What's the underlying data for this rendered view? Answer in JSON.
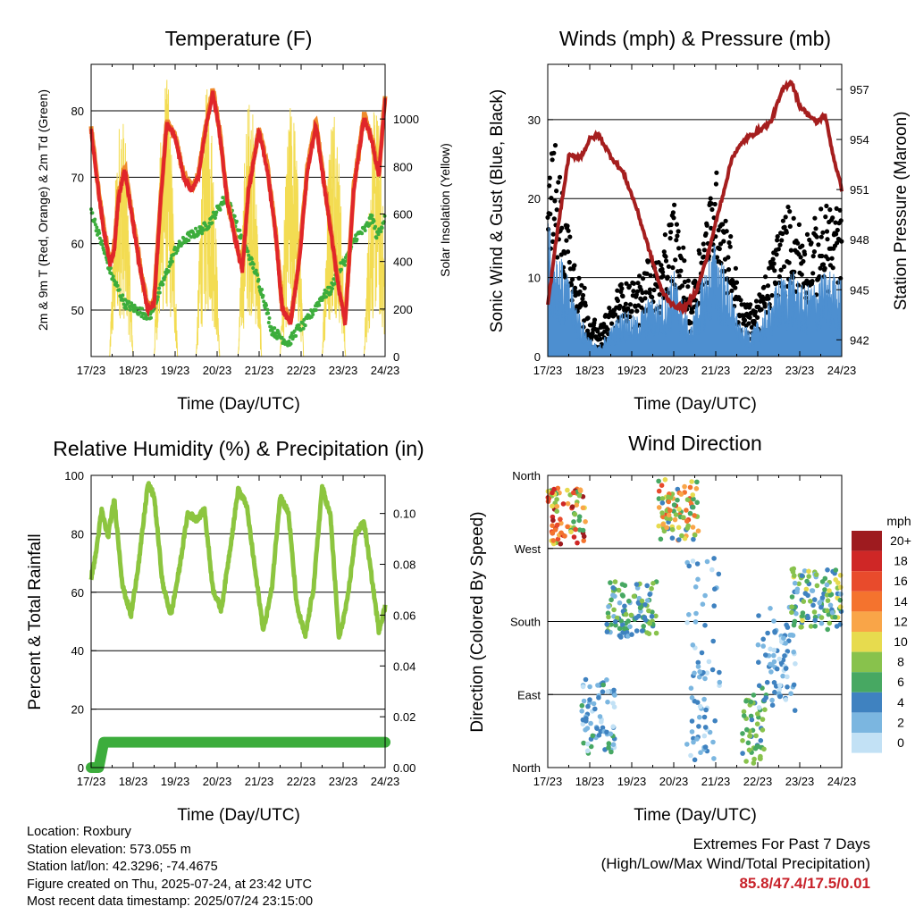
{
  "info": {
    "location": "Location: Roxbury",
    "elevation": "Station elevation: 573.055 m",
    "latlon": "Station lat/lon: 42.3296; -74.4675",
    "created": "Figure created on Thu, 2025-07-24, at 23:42 UTC",
    "latest": "Most recent data timestamp: 2025/07/24 23:15:00"
  },
  "extremes": {
    "title": "Extremes For Past 7 Days",
    "subtitle": "(High/Low/Max Wind/Total Precipitation)",
    "values": "85.8/47.4/17.5/0.01"
  },
  "colors": {
    "t2m": "#e0262a",
    "t9m": "#ef8a2c",
    "dewpoint": "#3cad3c",
    "solar": "#f3dc52",
    "wind": "#4d8fd0",
    "gust": "#000000",
    "pressure": "#a51e1e",
    "rh": "#8cc53f",
    "precip": "#3cad3c"
  },
  "wind_legend": {
    "title": "mph",
    "labels": [
      "20+",
      "18",
      "16",
      "14",
      "12",
      "10",
      "8",
      "6",
      "4",
      "2",
      "0"
    ],
    "colors": [
      "#9e1b1f",
      "#cf2726",
      "#e84b2c",
      "#f4732e",
      "#f9a548",
      "#e7db4e",
      "#88c24c",
      "#47a862",
      "#3f82c0",
      "#7bb6e0",
      "#c2e1f5"
    ]
  },
  "chart_data": [
    {
      "id": "temperature",
      "type": "line",
      "title": "Temperature (F)",
      "xlabel": "Time (Day/UTC)",
      "ylabel": "2m & 9m T (Red, Orange) & 2m Td (Green)",
      "y2label": "Solar Insolation (Yellow)",
      "x_ticks": [
        "17/23",
        "18/23",
        "19/23",
        "20/23",
        "21/23",
        "22/23",
        "23/23",
        "24/23"
      ],
      "xlim_days": [
        0,
        7
      ],
      "ylim": [
        43,
        87
      ],
      "y_ticks": [
        50,
        60,
        70,
        80
      ],
      "y2lim": [
        0,
        1230
      ],
      "y2_ticks": [
        0,
        200,
        400,
        600,
        800,
        1000
      ],
      "series": [
        {
          "key": "t2m",
          "x": [
            0,
            0.15,
            0.3,
            0.45,
            0.55,
            0.65,
            0.8,
            1.0,
            1.2,
            1.35,
            1.5,
            1.65,
            1.8,
            2.0,
            2.2,
            2.4,
            2.55,
            2.75,
            2.9,
            3.05,
            3.25,
            3.45,
            3.6,
            3.75,
            4.0,
            4.2,
            4.4,
            4.55,
            4.75,
            4.95,
            5.15,
            5.35,
            5.5,
            5.7,
            5.9,
            6.05,
            6.25,
            6.5,
            6.7,
            6.85,
            7.0
          ],
          "y": [
            77,
            69,
            62,
            57,
            59,
            67,
            71,
            63,
            55,
            50,
            51,
            66,
            78,
            76,
            70,
            68,
            70,
            78,
            83,
            77,
            66,
            60,
            56,
            68,
            77,
            71,
            61,
            50,
            48,
            57,
            71,
            78,
            71,
            62,
            53,
            48,
            68,
            79,
            75,
            70,
            82
          ]
        },
        {
          "key": "dewpoint",
          "x": [
            0,
            0.1,
            0.3,
            0.5,
            0.8,
            1.1,
            1.4,
            1.7,
            2.0,
            2.3,
            2.6,
            2.8,
            3.0,
            3.2,
            3.35,
            3.5,
            3.7,
            3.9,
            4.1,
            4.3,
            4.5,
            4.7,
            4.9,
            5.1,
            5.3,
            5.5,
            5.7,
            5.9,
            6.1,
            6.3,
            6.5,
            6.7,
            6.8,
            7.0
          ],
          "y": [
            65,
            63,
            59,
            55,
            51,
            50,
            49,
            54,
            59,
            61,
            62,
            63,
            65,
            67,
            65,
            62,
            59,
            56,
            52,
            47,
            46,
            45,
            47,
            48,
            50,
            52,
            53,
            56,
            58,
            61,
            62,
            64,
            61,
            64
          ]
        }
      ],
      "solar_peaks": [
        {
          "x": 0.72,
          "v": 1050
        },
        {
          "x": 1.78,
          "v": 1200
        },
        {
          "x": 2.78,
          "v": 1150
        },
        {
          "x": 3.78,
          "v": 1120
        },
        {
          "x": 4.78,
          "v": 1090
        },
        {
          "x": 5.78,
          "v": 1120
        },
        {
          "x": 6.78,
          "v": 1070
        }
      ]
    },
    {
      "id": "winds",
      "type": "scatter",
      "title": "Winds (mph) & Pressure (mb)",
      "xlabel": "Time (Day/UTC)",
      "ylabel": "Sonic Wind & Gust (Blue, Black)",
      "y2label": "Station Pressure (Maroon)",
      "x_ticks": [
        "17/23",
        "18/23",
        "19/23",
        "20/23",
        "21/23",
        "22/23",
        "23/23",
        "24/23"
      ],
      "xlim_days": [
        0,
        7
      ],
      "ylim": [
        0,
        37
      ],
      "y_ticks": [
        0,
        10,
        20,
        30
      ],
      "y2lim": [
        941,
        958.5
      ],
      "y2_ticks": [
        942,
        945,
        948,
        951,
        954,
        957
      ],
      "gust_envelope": {
        "x": [
          0,
          0.2,
          0.4,
          0.6,
          0.8,
          1.0,
          1.2,
          1.5,
          1.8,
          2.1,
          2.4,
          2.7,
          3.0,
          3.2,
          3.4,
          3.6,
          3.8,
          4.0,
          4.3,
          4.6,
          4.9,
          5.2,
          5.5,
          5.8,
          6.1,
          6.4,
          6.7,
          7.0
        ],
        "y": [
          28,
          26,
          20,
          15,
          10,
          6,
          3,
          6,
          10,
          9,
          13,
          12,
          20,
          14,
          8,
          14,
          19,
          24,
          17,
          7,
          6,
          10,
          17,
          19,
          16,
          17,
          20,
          19
        ]
      },
      "wind_envelope": {
        "x": [
          0,
          0.2,
          0.4,
          0.6,
          0.8,
          1.0,
          1.2,
          1.5,
          1.8,
          2.1,
          2.4,
          2.7,
          3.0,
          3.2,
          3.4,
          3.6,
          3.8,
          4.0,
          4.3,
          4.6,
          4.9,
          5.2,
          5.5,
          5.8,
          6.1,
          6.4,
          6.7,
          7.0
        ],
        "y": [
          14,
          12,
          9,
          7,
          4,
          2,
          1,
          3,
          5,
          4,
          6,
          6,
          9,
          6,
          3,
          7,
          10,
          12,
          8,
          3,
          3,
          5,
          8,
          9,
          7,
          8,
          9,
          8
        ]
      },
      "pressure": {
        "x": [
          0,
          0.2,
          0.5,
          0.8,
          1.0,
          1.2,
          1.5,
          1.8,
          2.1,
          2.4,
          2.7,
          3.0,
          3.3,
          3.55,
          3.8,
          4.1,
          4.4,
          4.7,
          5.0,
          5.3,
          5.6,
          5.8,
          6.0,
          6.2,
          6.4,
          6.6,
          6.8,
          7.0
        ],
        "y": [
          944,
          948,
          953,
          953,
          954,
          954.3,
          953,
          952,
          950,
          947.5,
          945,
          944,
          944,
          945,
          947,
          950,
          953,
          954,
          954.5,
          955,
          957,
          957.5,
          956,
          955.5,
          955,
          955.5,
          953,
          951
        ]
      }
    },
    {
      "id": "humidity",
      "type": "line",
      "title": "Relative Humidity (%) & Precipitation (in)",
      "xlabel": "Time (Day/UTC)",
      "ylabel": "Percent & Total Rainfall",
      "x_ticks": [
        "17/23",
        "18/23",
        "19/23",
        "20/23",
        "21/23",
        "22/23",
        "23/23",
        "24/23"
      ],
      "xlim_days": [
        0,
        7
      ],
      "ylim": [
        0,
        100
      ],
      "y_ticks": [
        0,
        20,
        40,
        60,
        80,
        100
      ],
      "y2lim": [
        0,
        0.115
      ],
      "y2_ticks": [
        0.0,
        0.02,
        0.04,
        0.06,
        0.08,
        0.1
      ],
      "series": [
        {
          "key": "rh",
          "x": [
            0,
            0.1,
            0.25,
            0.4,
            0.55,
            0.75,
            0.95,
            1.15,
            1.35,
            1.5,
            1.7,
            1.9,
            2.1,
            2.3,
            2.5,
            2.7,
            2.9,
            3.1,
            3.3,
            3.5,
            3.7,
            3.9,
            4.1,
            4.3,
            4.5,
            4.7,
            4.9,
            5.1,
            5.3,
            5.5,
            5.7,
            5.9,
            6.1,
            6.3,
            6.5,
            6.7,
            6.85,
            7.0
          ],
          "y": [
            65,
            72,
            88,
            79,
            92,
            62,
            52,
            72,
            97,
            93,
            63,
            52,
            68,
            87,
            85,
            88,
            61,
            54,
            74,
            95,
            90,
            68,
            47,
            61,
            93,
            87,
            55,
            45,
            62,
            96,
            86,
            44,
            57,
            80,
            84,
            63,
            47,
            55
          ]
        },
        {
          "key": "precip",
          "x": [
            0,
            0.18,
            0.3,
            7.0
          ],
          "y": [
            0,
            0,
            0.01,
            0.01
          ]
        }
      ]
    },
    {
      "id": "winddir",
      "type": "scatter",
      "title": "Wind Direction",
      "xlabel": "Time (Day/UTC)",
      "ylabel": "Direction (Colored By Speed)",
      "x_ticks": [
        "17/23",
        "18/23",
        "19/23",
        "20/23",
        "21/23",
        "22/23",
        "23/23",
        "24/23"
      ],
      "xlim_days": [
        0,
        7
      ],
      "y_ticks": [
        "North",
        "East",
        "South",
        "West",
        "North"
      ],
      "ylim_deg": [
        0,
        360
      ],
      "clusters": [
        {
          "x0": 0.0,
          "x1": 0.9,
          "d0": 275,
          "d1": 345,
          "s0": 6,
          "s1": 20
        },
        {
          "x0": 0.8,
          "x1": 1.6,
          "d0": 15,
          "d1": 110,
          "s0": 0,
          "s1": 6
        },
        {
          "x0": 1.4,
          "x1": 2.6,
          "d0": 160,
          "d1": 230,
          "s0": 2,
          "s1": 9
        },
        {
          "x0": 2.6,
          "x1": 3.6,
          "d0": 280,
          "d1": 355,
          "s0": 4,
          "s1": 16
        },
        {
          "x0": 3.3,
          "x1": 4.1,
          "d0": 5,
          "d1": 260,
          "s0": 0,
          "s1": 5
        },
        {
          "x0": 4.6,
          "x1": 5.2,
          "d0": 5,
          "d1": 100,
          "s0": 4,
          "s1": 9
        },
        {
          "x0": 5.0,
          "x1": 5.9,
          "d0": 70,
          "d1": 200,
          "s0": 0,
          "s1": 5
        },
        {
          "x0": 5.8,
          "x1": 7.0,
          "d0": 170,
          "d1": 245,
          "s0": 2,
          "s1": 10
        }
      ]
    }
  ]
}
